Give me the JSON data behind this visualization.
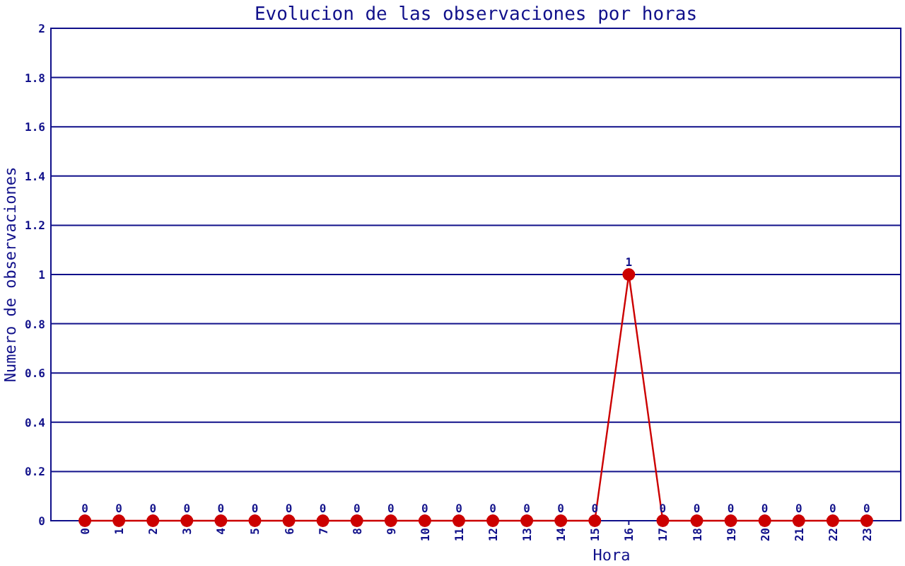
{
  "chart_data": {
    "type": "line",
    "title": "Evolucion de las observaciones por horas",
    "xlabel": "Hora",
    "ylabel": "Numero de observaciones",
    "categories": [
      "0",
      "1",
      "2",
      "3",
      "4",
      "5",
      "6",
      "7",
      "8",
      "9",
      "10",
      "11",
      "12",
      "13",
      "14",
      "15",
      "16",
      "17",
      "18",
      "19",
      "20",
      "21",
      "22",
      "23"
    ],
    "series": [
      {
        "color": "#cc0000",
        "values": [
          0,
          0,
          0,
          0,
          0,
          0,
          0,
          0,
          0,
          0,
          0,
          0,
          0,
          0,
          0,
          0,
          1,
          0,
          0,
          0,
          0,
          0,
          0,
          0
        ]
      }
    ],
    "ylim": [
      0,
      2
    ],
    "yticks": [
      0,
      0.2,
      0.4,
      0.6,
      0.8,
      1,
      1.2,
      1.4,
      1.6,
      1.8,
      2
    ],
    "grid": "y",
    "marker": "circle",
    "line_style": "solid",
    "data_labels": true
  }
}
